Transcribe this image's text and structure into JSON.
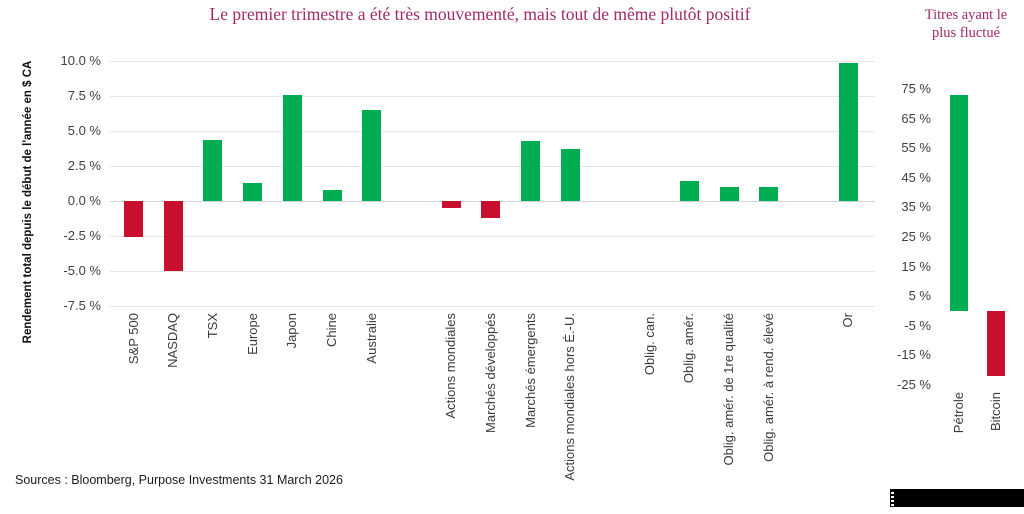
{
  "colors": {
    "positive": "#00AD50",
    "negative": "#C8102E",
    "title": "#A22A6A"
  },
  "main_title": "Le premier trimestre a été très mouvementé, mais tout de même plutôt positif",
  "source": "Sources : Bloomberg, Purpose Investments 31 March 2026",
  "chart_data": [
    {
      "id": "main",
      "type": "bar",
      "title": "Le premier trimestre a été très mouvementé, mais tout de même plutôt positif",
      "ylabel": "Rendement total depuis le début de l'année en $ CA",
      "xlabel": "",
      "categories": [
        "S&P 500",
        "NASDAQ",
        "TSX",
        "Europe",
        "Japon",
        "Chine",
        "Australie",
        "Actions mondiales",
        "Marchés développés",
        "Marchés émergents",
        "Actions mondiales hors É.-U.",
        "Oblig. can.",
        "Oblig. amér.",
        "Oblig. amér. de 1re qualité",
        "Oblig. amér. à rend. élevé",
        "Or"
      ],
      "values": [
        -2.6,
        -5.0,
        4.4,
        1.3,
        7.6,
        0.8,
        6.5,
        -0.5,
        -1.2,
        4.3,
        3.7,
        0.0,
        1.4,
        1.0,
        1.0,
        9.9
      ],
      "ylim": [
        -7.5,
        10.0
      ],
      "ytick_step": 2.5,
      "yticks": [
        "10.0 %",
        "7.5 %",
        "5.0 %",
        "2.5 %",
        "0.0 %",
        "-2.5 %",
        "-5.0 %",
        "-7.5 %"
      ],
      "grid": true,
      "legend": "none",
      "group_gaps_after": [
        "Australie",
        "Actions mondiales hors É.-U.",
        "Oblig. amér. à rend. élevé"
      ],
      "color_rule": "green if value >= 0, red if value < 0"
    },
    {
      "id": "fluctuation",
      "type": "bar",
      "title": "Titres ayant le plus fluctué",
      "categories": [
        "Pétrole",
        "Bitcoin"
      ],
      "values": [
        73,
        -22
      ],
      "ylim": [
        -25,
        75
      ],
      "ytick_step": 10,
      "yticks": [
        "75 %",
        "65 %",
        "55 %",
        "45 %",
        "35 %",
        "25 %",
        "15 %",
        "5 %",
        "-5 %",
        "-15 %",
        "-25 %"
      ],
      "grid": false,
      "legend": "none",
      "color_rule": "green if value >= 0, red if value < 0"
    }
  ]
}
